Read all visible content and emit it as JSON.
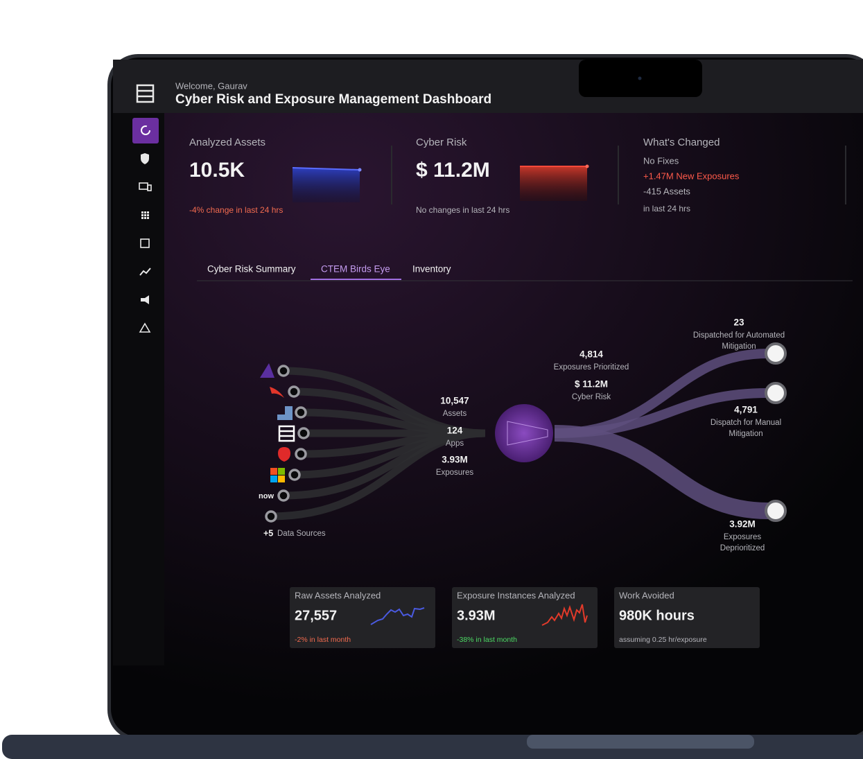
{
  "header": {
    "welcome": "Welcome, Gaurav",
    "title": "Cyber Risk and Exposure Management Dashboard"
  },
  "cards": [
    {
      "label": "Analyzed Assets",
      "value": "10.5K",
      "note": "-4% change in last 24 hrs"
    },
    {
      "label": "Cyber Risk",
      "value": "$ 11.2M",
      "note": "No changes in last 24 hrs"
    },
    {
      "label": "What's Changed",
      "lines": [
        "No Fixes",
        "+1.47M New Exposures",
        "-415 Assets"
      ],
      "note": "in last 24 hrs"
    }
  ],
  "tabs": [
    "Cyber Risk Summary",
    "CTEM Birds Eye",
    "Inventory"
  ],
  "flow": {
    "source_logo_text": "now",
    "sources_more": {
      "count": "+5",
      "text": "Data Sources"
    },
    "inputs": [
      {
        "value": "10,547",
        "label": "Assets"
      },
      {
        "value": "124",
        "label": "Apps"
      },
      {
        "value": "3.93M",
        "label": "Exposures"
      }
    ],
    "prioritized": [
      {
        "value": "4,814",
        "label": "Exposures Prioritized"
      },
      {
        "value": "$ 11.2M",
        "label": "Cyber Risk"
      }
    ],
    "outcomes": [
      {
        "value": "23",
        "label": [
          "Dispatched for Automated",
          "Mitigation"
        ]
      },
      {
        "value": "4,791",
        "label": [
          "Dispatch for Manual",
          "Mitigation"
        ]
      },
      {
        "value": "3.92M",
        "label": [
          "Exposures",
          "Deprioritized"
        ]
      }
    ]
  },
  "metrics": [
    {
      "label": "Raw Assets Analyzed",
      "value": "27,557",
      "note": "-2% in last month"
    },
    {
      "label": "Exposure Instances Analyzed",
      "value": "3.93M",
      "note": "-38% in last month"
    },
    {
      "label": "Work Avoided",
      "value": "980K hours",
      "note": "assuming 0.25 hr/exposure"
    }
  ]
}
